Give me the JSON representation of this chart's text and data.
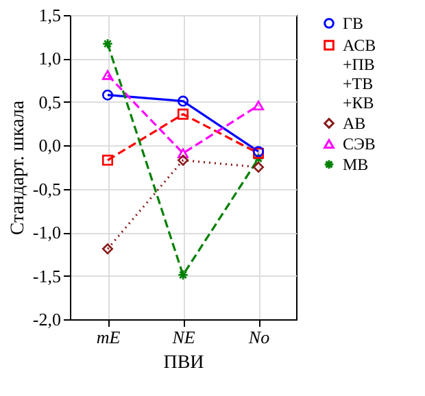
{
  "chart_data": {
    "type": "line",
    "xlabel": "ПВИ",
    "ylabel": "Стандарт. шкала",
    "categories": [
      "mE",
      "NE",
      "No"
    ],
    "ylim": [
      -2.0,
      1.5
    ],
    "yticks": [
      {
        "value": -2.0,
        "label": "-2,0"
      },
      {
        "value": -1.5,
        "label": "-1,5"
      },
      {
        "value": -1.0,
        "label": "-1,0"
      },
      {
        "value": -0.5,
        "label": "-0,5"
      },
      {
        "value": 0.0,
        "label": "0,0"
      },
      {
        "value": 0.5,
        "label": "0,5"
      },
      {
        "value": 1.0,
        "label": "1,0"
      },
      {
        "value": 1.5,
        "label": "1,5"
      }
    ],
    "grid": true,
    "legend": "right",
    "series": [
      {
        "name": "ГВ",
        "color": "#0000ff",
        "marker": "circle",
        "line_style": "solid",
        "values": [
          0.58,
          0.51,
          -0.07
        ]
      },
      {
        "name": "АСВ +ПВ +ТВ +КВ",
        "color": "#ff0000",
        "marker": "square",
        "line_style": "dashed",
        "values": [
          -0.17,
          0.36,
          -0.09
        ]
      },
      {
        "name": "АВ",
        "color": "#8b1a1a",
        "marker": "diamond",
        "line_style": "dotted",
        "values": [
          -1.19,
          -0.17,
          -0.25
        ]
      },
      {
        "name": "СЭВ",
        "color": "#ff00ff",
        "marker": "triangle",
        "line_style": "dashed",
        "values": [
          0.81,
          -0.09,
          0.46
        ]
      },
      {
        "name": "МВ",
        "color": "#008000",
        "marker": "cross",
        "line_style": "dashed",
        "values": [
          1.17,
          -1.49,
          -0.15
        ]
      }
    ]
  }
}
